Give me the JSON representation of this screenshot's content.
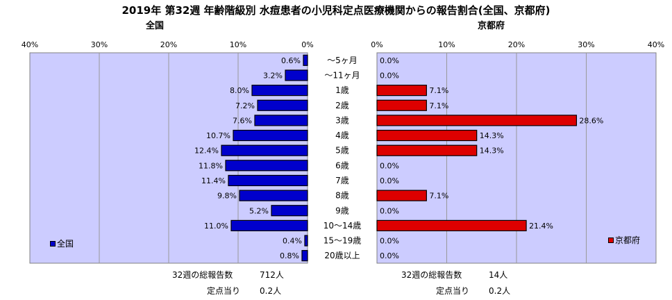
{
  "title": "2019年 第32週 年齢階級別 水痘患者の小児科定点医療機関からの報告割合(全国、京都府)",
  "colors": {
    "plot_bg": "#ccccff",
    "zenkoku_bar": "#0000cc",
    "kyoto_bar": "#dd0000",
    "grid": "#999999"
  },
  "chart_data": [
    {
      "type": "bar",
      "orientation": "horizontal",
      "direction": "right-to-left",
      "title": "全国",
      "xlim": [
        0,
        40
      ],
      "ticks": [
        "40%",
        "30%",
        "20%",
        "10%",
        "0%"
      ],
      "tick_values": [
        40,
        30,
        20,
        10,
        0
      ],
      "grid": true,
      "legend": "left",
      "series": [
        {
          "name": "全国",
          "values": [
            0.6,
            3.2,
            8.0,
            7.2,
            7.6,
            10.7,
            12.4,
            11.8,
            11.4,
            9.8,
            5.2,
            11.0,
            0.4,
            0.8
          ],
          "labels": [
            "0.6%",
            "3.2%",
            "8.0%",
            "7.2%",
            "7.6%",
            "10.7%",
            "12.4%",
            "11.8%",
            "11.4%",
            "9.8%",
            "5.2%",
            "11.0%",
            "0.4%",
            "0.8%"
          ]
        }
      ]
    },
    {
      "type": "bar",
      "orientation": "horizontal",
      "direction": "left-to-right",
      "title": "京都府",
      "xlim": [
        0,
        40
      ],
      "ticks": [
        "0%",
        "10%",
        "20%",
        "30%",
        "40%"
      ],
      "tick_values": [
        0,
        10,
        20,
        30,
        40
      ],
      "grid": true,
      "legend": "right",
      "series": [
        {
          "name": "京都府",
          "values": [
            0.0,
            0.0,
            7.1,
            7.1,
            28.6,
            14.3,
            14.3,
            0.0,
            0.0,
            7.1,
            0.0,
            21.4,
            0.0,
            0.0
          ],
          "labels": [
            "0.0%",
            "0.0%",
            "7.1%",
            "7.1%",
            "28.6%",
            "14.3%",
            "14.3%",
            "0.0%",
            "0.0%",
            "7.1%",
            "0.0%",
            "21.4%",
            "0.0%",
            "0.0%"
          ]
        }
      ]
    }
  ],
  "categories": [
    "～5ヶ月",
    "～11ヶ月",
    "1歳",
    "2歳",
    "3歳",
    "4歳",
    "5歳",
    "6歳",
    "7歳",
    "8歳",
    "9歳",
    "10～14歳",
    "15～19歳",
    "20歳以上"
  ],
  "footer": {
    "zenkoku_total_label": "32週の総報告数",
    "zenkoku_total_value": "712人",
    "zenkoku_per_label": "定点当り",
    "zenkoku_per_value": "0.2人",
    "kyoto_total_label": "32週の総報告数",
    "kyoto_total_value": "14人",
    "kyoto_per_label": "定点当り",
    "kyoto_per_value": "0.2人"
  }
}
